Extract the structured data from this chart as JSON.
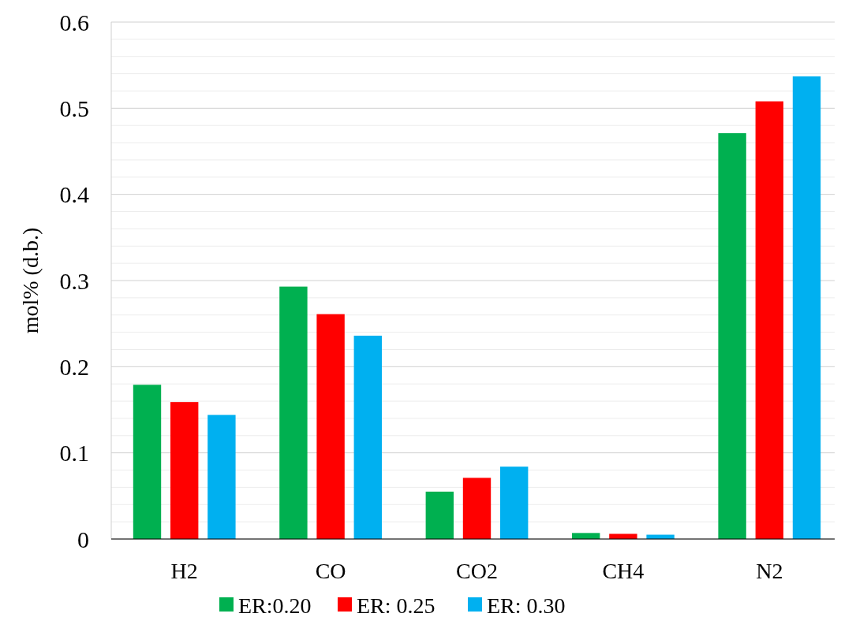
{
  "chart_data": {
    "type": "bar",
    "ylabel": "mol% (d.b.)",
    "categories": [
      "H2",
      "CO",
      "CO2",
      "CH4",
      "N2"
    ],
    "series": [
      {
        "name": "ER:0.20",
        "color": "#00b050",
        "values": [
          0.179,
          0.293,
          0.055,
          0.007,
          0.471
        ]
      },
      {
        "name": "ER: 0.25",
        "color": "#ff0000",
        "values": [
          0.159,
          0.261,
          0.071,
          0.006,
          0.508
        ]
      },
      {
        "name": "ER: 0.30",
        "color": "#00b0f0",
        "values": [
          0.144,
          0.236,
          0.084,
          0.005,
          0.537
        ]
      }
    ],
    "ylim": [
      0,
      0.6
    ],
    "yticks": [
      0,
      {
        "value": 0.02,
        "label": null
      },
      {
        "value": 0.04,
        "label": null
      },
      {
        "value": 0.06,
        "label": null
      },
      {
        "value": 0.08,
        "label": null
      },
      0.1,
      {
        "value": 0.12,
        "label": null
      },
      {
        "value": 0.14,
        "label": null
      },
      {
        "value": 0.16,
        "label": null
      },
      {
        "value": 0.18,
        "label": null
      },
      0.2,
      {
        "value": 0.22,
        "label": null
      },
      {
        "value": 0.24,
        "label": null
      },
      {
        "value": 0.26,
        "label": null
      },
      {
        "value": 0.28,
        "label": null
      },
      0.3,
      {
        "value": 0.32,
        "label": null
      },
      {
        "value": 0.34,
        "label": null
      },
      {
        "value": 0.36,
        "label": null
      },
      {
        "value": 0.38,
        "label": null
      },
      0.4,
      {
        "value": 0.42,
        "label": null
      },
      {
        "value": 0.44,
        "label": null
      },
      {
        "value": 0.46,
        "label": null
      },
      {
        "value": 0.48,
        "label": null
      },
      0.5,
      {
        "value": 0.52,
        "label": null
      },
      {
        "value": 0.54,
        "label": null
      },
      {
        "value": 0.56,
        "label": null
      },
      {
        "value": 0.58,
        "label": null
      },
      0.6
    ],
    "grid": true,
    "legend": "bottom"
  }
}
